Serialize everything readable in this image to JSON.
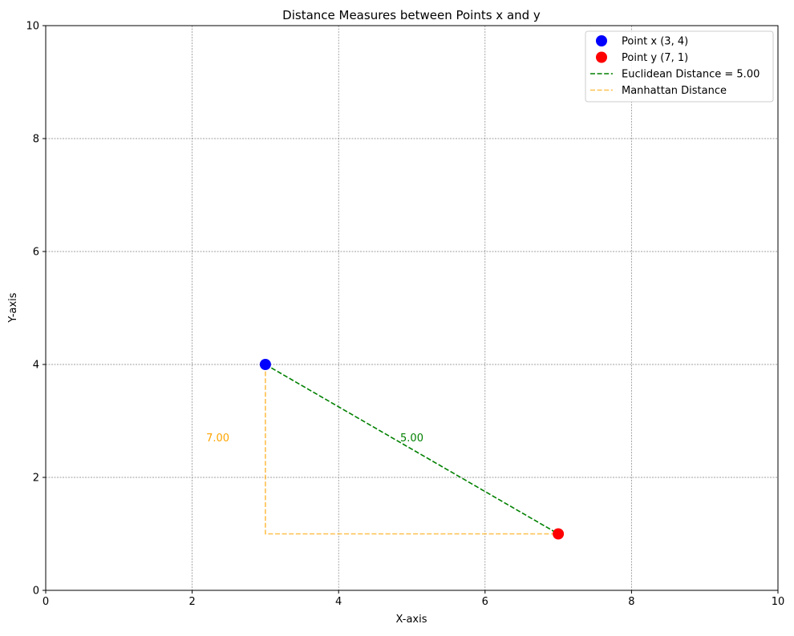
{
  "chart_data": {
    "type": "scatter",
    "title": "Distance Measures between Points x and y",
    "xlabel": "X-axis",
    "ylabel": "Y-axis",
    "xlim": [
      0,
      10
    ],
    "ylim": [
      0,
      10
    ],
    "xticks": [
      0,
      2,
      4,
      6,
      8,
      10
    ],
    "yticks": [
      0,
      2,
      4,
      6,
      8,
      10
    ],
    "grid": true,
    "legend_position": "top-right",
    "points": [
      {
        "name": "Point x (3, 4)",
        "x": 3,
        "y": 4,
        "color": "#0000ff"
      },
      {
        "name": "Point y (7, 1)",
        "x": 7,
        "y": 1,
        "color": "#ff0000"
      }
    ],
    "lines": [
      {
        "name": "Euclidean Distance = 5.00",
        "x": [
          3,
          7
        ],
        "y": [
          4,
          1
        ],
        "color": "#008000",
        "style": "dashed"
      },
      {
        "name": "Manhattan Distance",
        "x": [
          3,
          3,
          7
        ],
        "y": [
          4,
          1,
          1
        ],
        "color": "#ffa500",
        "style": "dashed"
      }
    ],
    "annotations": [
      {
        "text": "5.00",
        "x": 5.0,
        "y": 2.7,
        "color": "#008000"
      },
      {
        "text": "7.00",
        "x": 2.35,
        "y": 2.7,
        "color": "#ffa500"
      }
    ]
  }
}
